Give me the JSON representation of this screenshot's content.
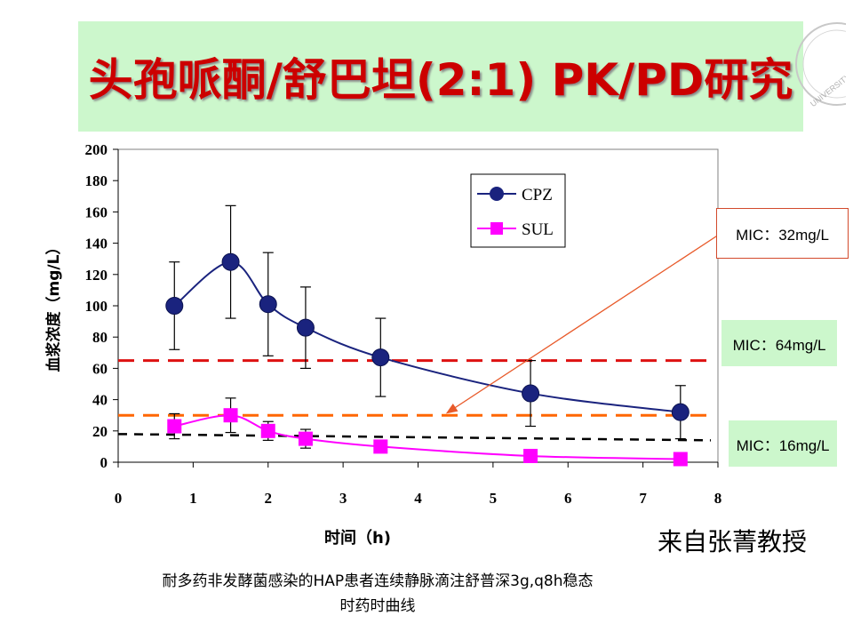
{
  "slide": {
    "title": "头孢哌酮/舒巴坦(2:1) PK/PD研究",
    "source": "来自张菁教授",
    "caption_line1": "耐多药非发酵菌感染的HAP患者连续静脉滴注舒普深3g,q8h稳态",
    "caption_line2": "时药时曲线",
    "seal_text": "UNIVERSITY"
  },
  "mic_labels": {
    "mic32": "MIC：32mg/L",
    "mic64": "MIC：64mg/L",
    "mic16": "MIC：16mg/L"
  },
  "colors": {
    "title": "#cc0000",
    "title_box": "#ccf7cc",
    "cpz": "#1a237e",
    "sul": "#ff00ff",
    "mic64_line": "#dd1111",
    "mic32_line": "#ff6600",
    "mic16_line": "#000000",
    "arrow": "#e85a2a"
  },
  "chart_data": {
    "type": "line",
    "xlabel": "时间（h)",
    "ylabel": "血浆浓度（mg/L）",
    "xlim": [
      0,
      8
    ],
    "ylim": [
      0,
      200
    ],
    "xticks": [
      0,
      1,
      2,
      3,
      4,
      5,
      6,
      7,
      8
    ],
    "yticks": [
      0,
      20,
      40,
      60,
      80,
      100,
      120,
      140,
      160,
      180,
      200
    ],
    "grid": false,
    "legend_position": "top-right",
    "series": [
      {
        "name": "CPZ",
        "marker": "circle",
        "x": [
          0.75,
          1.5,
          2.0,
          2.5,
          3.5,
          5.5,
          7.5
        ],
        "y": [
          100,
          128,
          101,
          86,
          67,
          44,
          32
        ],
        "err": [
          28,
          36,
          33,
          26,
          25,
          21,
          17
        ]
      },
      {
        "name": "SUL",
        "marker": "square",
        "x": [
          0.75,
          1.5,
          2.0,
          2.5,
          3.5,
          5.5,
          7.5
        ],
        "y": [
          23,
          30,
          20,
          15,
          10,
          4,
          2
        ],
        "err": [
          8,
          11,
          6,
          6,
          0,
          0,
          0
        ]
      }
    ],
    "reference_lines": [
      {
        "value": 65,
        "label": "MIC：64mg/L",
        "style": "dashed",
        "color": "#dd1111"
      },
      {
        "value": 30,
        "label": "MIC：32mg/L",
        "style": "dashed",
        "color": "#ff6600"
      },
      {
        "value_start": 18,
        "value_end": 14,
        "label": "MIC：16mg/L",
        "style": "dashed",
        "color": "#000000"
      }
    ]
  }
}
